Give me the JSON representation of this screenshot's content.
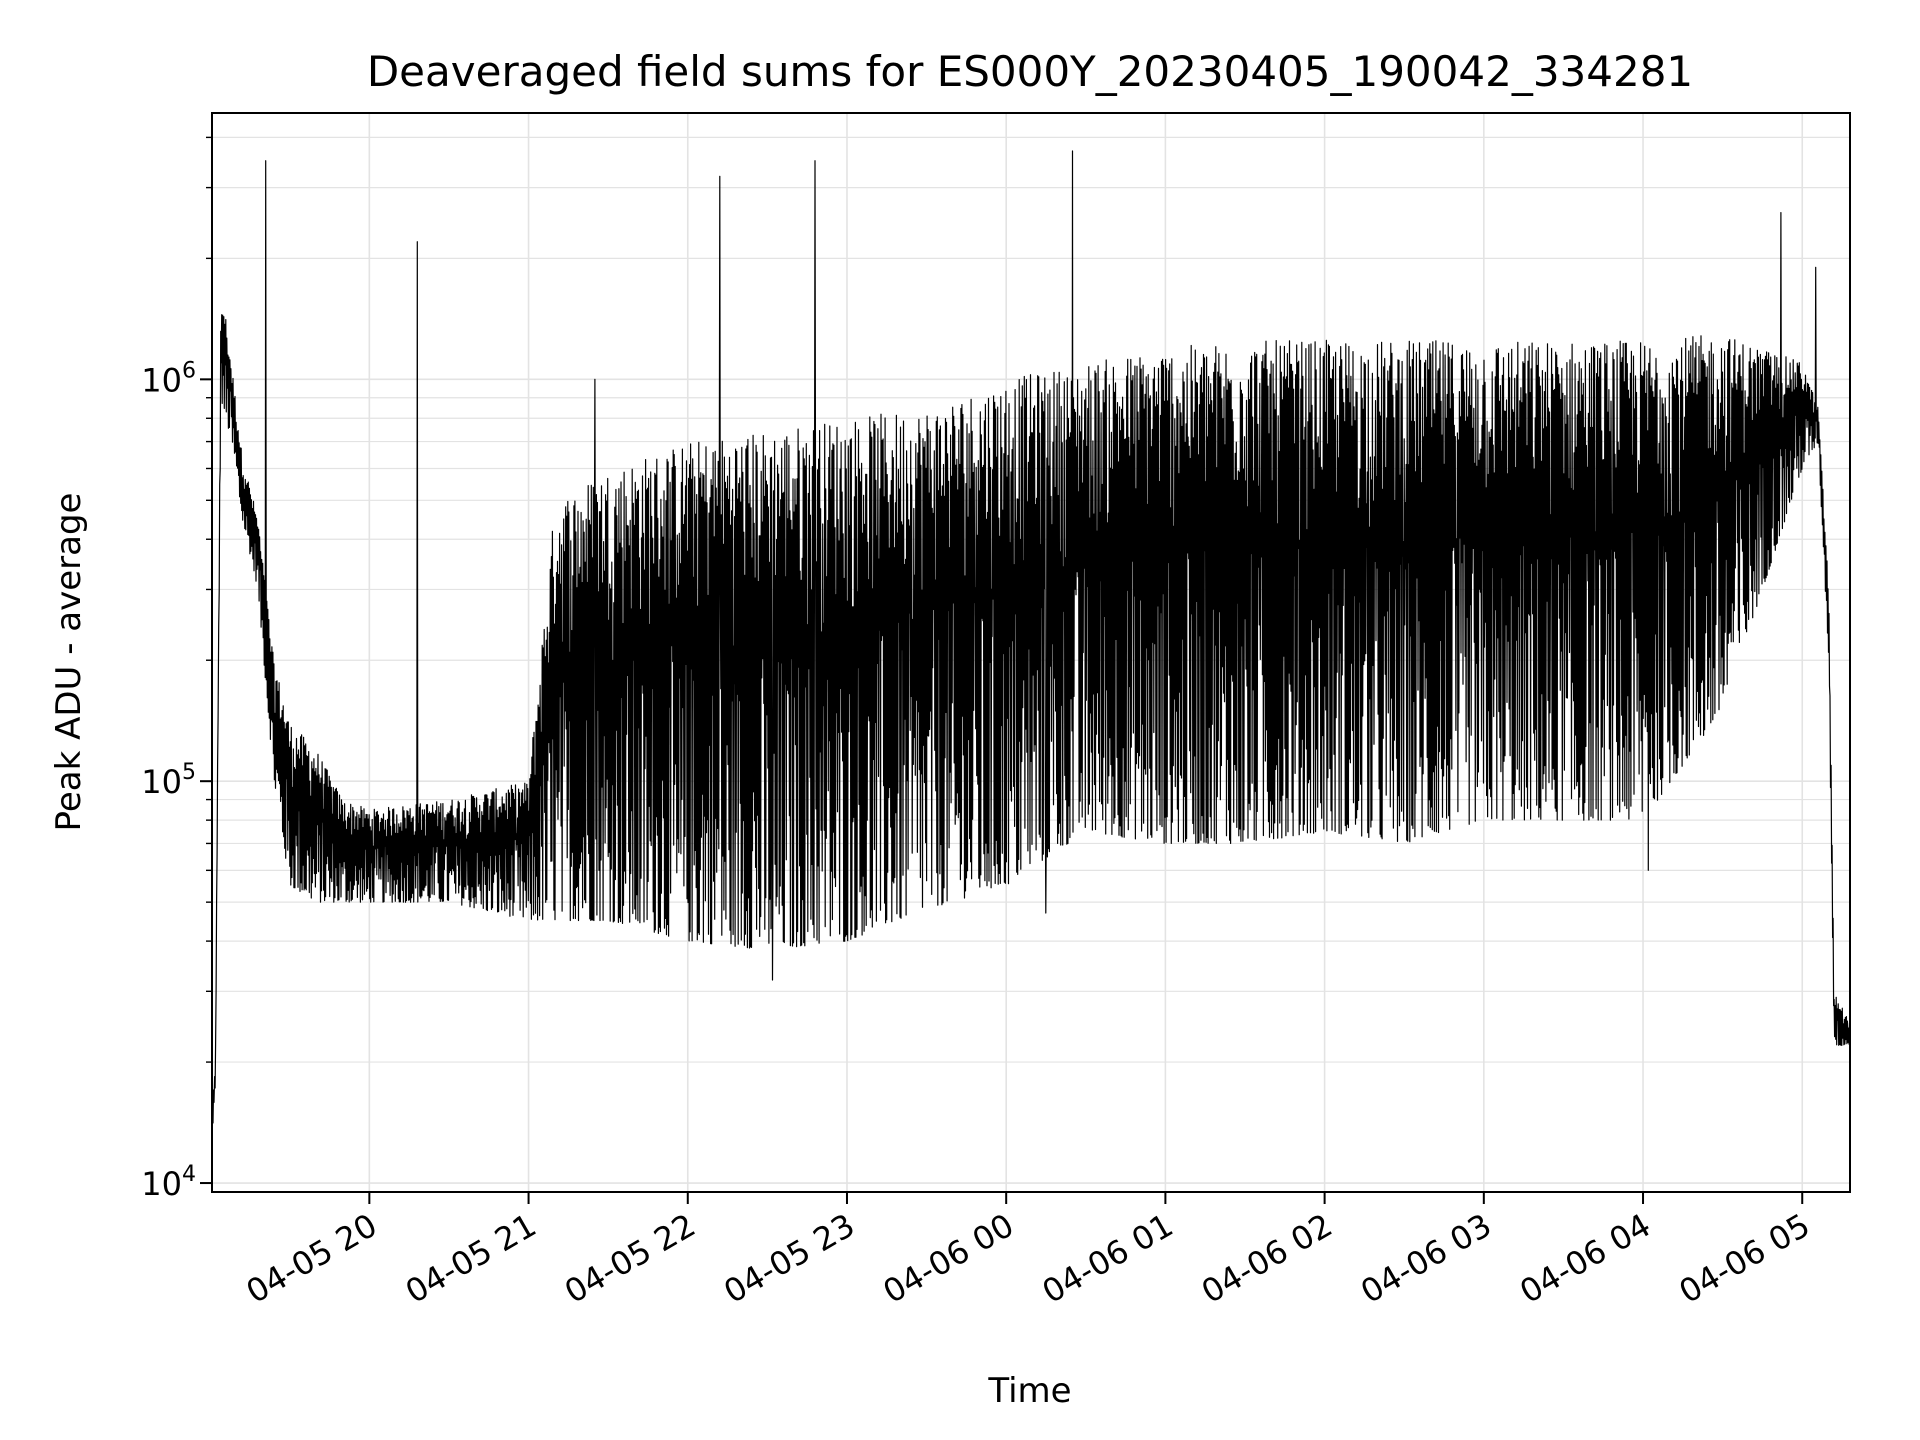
{
  "chart_data": {
    "type": "line",
    "title": "Deaveraged field sums for ES000Y_20230405_190042_334281",
    "xlabel": "Time",
    "ylabel": "Peak ADU - average",
    "yscale": "log",
    "ylim": [
      9500,
      4600000
    ],
    "xlim": [
      "2023-04-05 19:00:42",
      "2023-04-06 05:18:00"
    ],
    "grid": true,
    "legend": "none",
    "line_color": "#000000",
    "x_ticks": [
      {
        "value": "2023-04-05 20:00",
        "label": "04-05 20"
      },
      {
        "value": "2023-04-05 21:00",
        "label": "04-05 21"
      },
      {
        "value": "2023-04-05 22:00",
        "label": "04-05 22"
      },
      {
        "value": "2023-04-05 23:00",
        "label": "04-05 23"
      },
      {
        "value": "2023-04-06 00:00",
        "label": "04-06 00"
      },
      {
        "value": "2023-04-06 01:00",
        "label": "04-06 01"
      },
      {
        "value": "2023-04-06 02:00",
        "label": "04-06 02"
      },
      {
        "value": "2023-04-06 03:00",
        "label": "04-06 03"
      },
      {
        "value": "2023-04-06 04:00",
        "label": "04-06 04"
      },
      {
        "value": "2023-04-06 05:00",
        "label": "04-06 05"
      }
    ],
    "y_ticks": [
      {
        "value": 10000,
        "base": "10",
        "exp": "4"
      },
      {
        "value": 100000,
        "base": "10",
        "exp": "5"
      },
      {
        "value": 1000000,
        "base": "10",
        "exp": "6"
      }
    ],
    "envelope": {
      "description_free": true,
      "upper": [
        [
          "2023-04-05 19:00:42",
          15000
        ],
        [
          "2023-04-05 19:02",
          20000
        ],
        [
          "2023-04-05 19:04",
          1400000
        ],
        [
          "2023-04-05 19:05",
          1600000
        ],
        [
          "2023-04-05 19:08",
          1100000
        ],
        [
          "2023-04-05 19:12",
          650000
        ],
        [
          "2023-04-05 19:18",
          450000
        ],
        [
          "2023-04-05 19:24",
          200000
        ],
        [
          "2023-04-05 19:30",
          140000
        ],
        [
          "2023-04-05 19:40",
          120000
        ],
        [
          "2023-04-05 19:50",
          90000
        ],
        [
          "2023-04-05 20:00",
          85000
        ],
        [
          "2023-04-05 20:30",
          90000
        ],
        [
          "2023-04-05 21:00",
          100000
        ],
        [
          "2023-04-05 21:10",
          500000
        ],
        [
          "2023-04-05 21:30",
          600000
        ],
        [
          "2023-04-05 22:00",
          700000
        ],
        [
          "2023-04-05 22:30",
          750000
        ],
        [
          "2023-04-05 23:00",
          800000
        ],
        [
          "2023-04-05 23:30",
          850000
        ],
        [
          "2023-04-06 00:00",
          1000000
        ],
        [
          "2023-04-06 00:30",
          1100000
        ],
        [
          "2023-04-06 01:00",
          1200000
        ],
        [
          "2023-04-06 01:30",
          1250000
        ],
        [
          "2023-04-06 02:00",
          1250000
        ],
        [
          "2023-04-06 02:30",
          1250000
        ],
        [
          "2023-04-06 03:00",
          1250000
        ],
        [
          "2023-04-06 03:30",
          1250000
        ],
        [
          "2023-04-06 04:00",
          1250000
        ],
        [
          "2023-04-06 04:30",
          1300000
        ],
        [
          "2023-04-06 05:00",
          1100000
        ],
        [
          "2023-04-06 05:06",
          850000
        ],
        [
          "2023-04-06 05:10",
          300000
        ],
        [
          "2023-04-06 05:12",
          30000
        ],
        [
          "2023-04-06 05:18",
          25000
        ]
      ],
      "lower": [
        [
          "2023-04-05 19:00:42",
          12000
        ],
        [
          "2023-04-05 19:02",
          18000
        ],
        [
          "2023-04-05 19:04",
          900000
        ],
        [
          "2023-04-05 19:08",
          700000
        ],
        [
          "2023-04-05 19:12",
          450000
        ],
        [
          "2023-04-05 19:18",
          300000
        ],
        [
          "2023-04-05 19:24",
          100000
        ],
        [
          "2023-04-05 19:30",
          55000
        ],
        [
          "2023-04-05 19:40",
          50000
        ],
        [
          "2023-04-05 20:00",
          50000
        ],
        [
          "2023-04-05 20:30",
          50000
        ],
        [
          "2023-04-05 21:00",
          45000
        ],
        [
          "2023-04-05 21:30",
          45000
        ],
        [
          "2023-04-05 22:00",
          40000
        ],
        [
          "2023-04-05 22:30",
          38000
        ],
        [
          "2023-04-05 23:00",
          40000
        ],
        [
          "2023-04-05 23:30",
          48000
        ],
        [
          "2023-04-06 00:00",
          55000
        ],
        [
          "2023-04-06 00:30",
          75000
        ],
        [
          "2023-04-06 01:00",
          70000
        ],
        [
          "2023-04-06 01:30",
          70000
        ],
        [
          "2023-04-06 02:00",
          75000
        ],
        [
          "2023-04-06 02:30",
          70000
        ],
        [
          "2023-04-06 03:00",
          80000
        ],
        [
          "2023-04-06 03:30",
          80000
        ],
        [
          "2023-04-06 04:00",
          80000
        ],
        [
          "2023-04-06 04:30",
          150000
        ],
        [
          "2023-04-06 05:00",
          600000
        ],
        [
          "2023-04-06 05:06",
          700000
        ],
        [
          "2023-04-06 05:10",
          200000
        ],
        [
          "2023-04-06 05:12",
          22000
        ],
        [
          "2023-04-06 05:18",
          22000
        ]
      ]
    },
    "spikes": [
      [
        "2023-04-05 19:21",
        3500000
      ],
      [
        "2023-04-05 20:18",
        2200000
      ],
      [
        "2023-04-05 21:25",
        1000000
      ],
      [
        "2023-04-05 22:12",
        3200000
      ],
      [
        "2023-04-05 22:48",
        3500000
      ],
      [
        "2023-04-06 00:25",
        3700000
      ],
      [
        "2023-04-06 04:52",
        2600000
      ],
      [
        "2023-04-06 05:05",
        1900000
      ]
    ],
    "dips": [
      [
        "2023-04-05 22:32",
        32000
      ],
      [
        "2023-04-06 00:15",
        47000
      ],
      [
        "2023-04-06 04:02",
        60000
      ]
    ]
  }
}
